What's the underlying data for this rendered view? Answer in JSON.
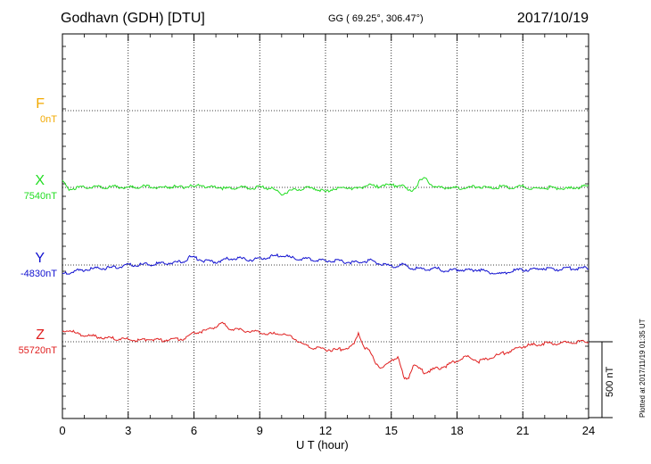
{
  "header": {
    "station": "Godhavn (GDH)  [DTU]",
    "coords": "GG ( 69.25°, 306.47°)",
    "date": "2017/10/19"
  },
  "footer": {
    "plotted": "Plotted at 2017/11/19 01:35 UT",
    "scale_label": "500 nT"
  },
  "chart_data": {
    "type": "line",
    "title": "Godhavn (GDH)  [DTU]",
    "xlabel": "U T (hour)",
    "ylabel": "",
    "xlim": [
      0,
      24
    ],
    "xticks": [
      "0",
      "3",
      "6",
      "9",
      "12",
      "15",
      "18",
      "21",
      "24"
    ],
    "grid": true,
    "scale_bar_nT": 500,
    "components": [
      {
        "letter": "F",
        "baseline": "0nT",
        "color": "#f2a900",
        "values": []
      },
      {
        "letter": "X",
        "baseline": "7540nT",
        "color": "#22dd22",
        "x": [
          0,
          0.25,
          0.5,
          1,
          1.5,
          2,
          2.5,
          3,
          3.5,
          4,
          4.5,
          5,
          5.5,
          5.8,
          6,
          6.3,
          6.6,
          7,
          7.5,
          8,
          8.5,
          9,
          9.5,
          9.8,
          10,
          10.2,
          10.5,
          11,
          11.5,
          12,
          12.3,
          12.6,
          13,
          13.5,
          14,
          14.3,
          14.6,
          15,
          15.5,
          15.8,
          16,
          16.3,
          16.6,
          16.8,
          17,
          17.5,
          18,
          18.5,
          19,
          19.5,
          20,
          20.5,
          21,
          21.5,
          22,
          22.5,
          23,
          23.5,
          24
        ],
        "values": [
          40,
          -10,
          -5,
          0,
          5,
          0,
          5,
          0,
          5,
          5,
          0,
          5,
          0,
          10,
          -5,
          20,
          0,
          5,
          -10,
          0,
          -5,
          0,
          -5,
          -25,
          -45,
          -30,
          -20,
          -5,
          -5,
          -30,
          -10,
          -5,
          0,
          -10,
          25,
          0,
          20,
          10,
          15,
          -30,
          -15,
          40,
          60,
          20,
          0,
          0,
          -5,
          0,
          5,
          -5,
          5,
          0,
          5,
          -10,
          0,
          -5,
          -10,
          0,
          10
        ]
      },
      {
        "letter": "Y",
        "baseline": "-4830nT",
        "color": "#1010d0",
        "x": [
          0,
          0.3,
          0.6,
          1,
          1.5,
          2,
          2.5,
          3,
          3.5,
          4,
          4.5,
          5,
          5.5,
          5.8,
          6,
          6.5,
          7,
          7.5,
          8,
          8.5,
          9,
          9.5,
          10,
          10.5,
          11,
          11.5,
          12,
          12.5,
          13,
          13.5,
          14,
          14.5,
          15,
          15.5,
          16,
          16.5,
          17,
          17.5,
          18,
          18.5,
          19,
          19.5,
          20,
          20.5,
          21,
          21.5,
          22,
          22.5,
          23,
          23.5,
          24
        ],
        "values": [
          -60,
          -50,
          -40,
          -30,
          -25,
          -20,
          -15,
          0,
          0,
          5,
          10,
          15,
          20,
          55,
          50,
          25,
          20,
          40,
          45,
          35,
          40,
          55,
          65,
          45,
          40,
          35,
          30,
          25,
          20,
          15,
          30,
          10,
          -10,
          0,
          -20,
          -30,
          -20,
          -40,
          -30,
          -35,
          -30,
          -50,
          -60,
          -40,
          -30,
          -30,
          -20,
          -30,
          -20,
          -25,
          -15
        ]
      },
      {
        "letter": "Z",
        "baseline": "55720nT",
        "color": "#e02020",
        "x": [
          0,
          0.3,
          0.6,
          1,
          1.5,
          2,
          2.5,
          3,
          3.5,
          4,
          4.5,
          5,
          5.5,
          6,
          6.5,
          7,
          7.3,
          7.6,
          8,
          8.5,
          9,
          9.5,
          10,
          10.5,
          11,
          11.5,
          12,
          12.5,
          13,
          13.3,
          13.5,
          13.8,
          14,
          14.3,
          14.6,
          15,
          15.3,
          15.6,
          15.8,
          16,
          16.5,
          17,
          17.5,
          18,
          18.5,
          19,
          19.5,
          20,
          20.5,
          21,
          21.5,
          22,
          22.5,
          23,
          23.5,
          24
        ],
        "values": [
          60,
          80,
          55,
          40,
          35,
          25,
          20,
          15,
          10,
          20,
          10,
          15,
          20,
          60,
          70,
          100,
          120,
          90,
          80,
          70,
          60,
          50,
          55,
          30,
          -20,
          -40,
          -50,
          -55,
          -40,
          -20,
          60,
          -40,
          -60,
          -140,
          -180,
          -120,
          -100,
          -250,
          -230,
          -150,
          -200,
          -180,
          -160,
          -120,
          -100,
          -130,
          -110,
          -80,
          -60,
          -30,
          -20,
          -10,
          -10,
          -5,
          0,
          0
        ]
      }
    ]
  }
}
